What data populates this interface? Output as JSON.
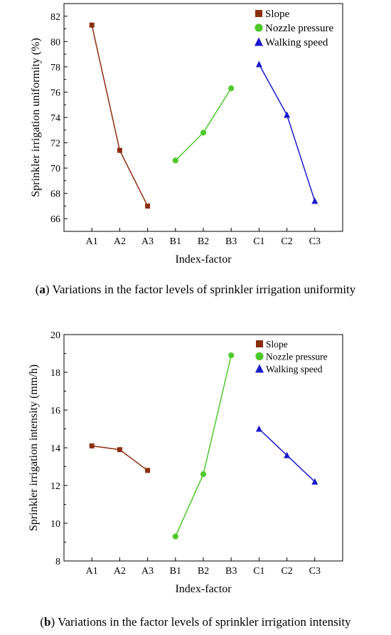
{
  "chart_data": [
    {
      "type": "line",
      "categories": [
        "A1",
        "A2",
        "A3",
        "B1",
        "B2",
        "B3",
        "C1",
        "C2",
        "C3"
      ],
      "xlabel": "Index-factor",
      "ylabel": "Sprinkler irrigation uniformity (%)",
      "ylim": [
        65,
        83
      ],
      "yticks": [
        66,
        68,
        70,
        72,
        74,
        76,
        78,
        80,
        82
      ],
      "grid": false,
      "legend_position": "top-right",
      "series": [
        {
          "name": "Slope",
          "color": "#8b2e0f",
          "marker": "square",
          "x": [
            "A1",
            "A2",
            "A3"
          ],
          "values": [
            81.3,
            71.4,
            67.0
          ]
        },
        {
          "name": "Nozzle pressure",
          "color": "#4ec92b",
          "marker": "circle",
          "x": [
            "B1",
            "B2",
            "B3"
          ],
          "values": [
            70.6,
            72.8,
            76.3
          ]
        },
        {
          "name": "Walking speed",
          "color": "#1a1acb",
          "marker": "triangle",
          "x": [
            "C1",
            "C2",
            "C3"
          ],
          "values": [
            78.2,
            74.2,
            67.4
          ]
        }
      ]
    },
    {
      "type": "line",
      "categories": [
        "A1",
        "A2",
        "A3",
        "B1",
        "B2",
        "B3",
        "C1",
        "C2",
        "C3"
      ],
      "xlabel": "Index-factor",
      "ylabel": "Sprinkler irrigation intensity (mm/h)",
      "ylim": [
        8,
        20
      ],
      "yticks": [
        8,
        10,
        12,
        14,
        16,
        18,
        20
      ],
      "grid": false,
      "legend_position": "top-right",
      "series": [
        {
          "name": "Slope",
          "color": "#8b2e0f",
          "marker": "square",
          "x": [
            "A1",
            "A2",
            "A3"
          ],
          "values": [
            14.1,
            13.9,
            12.8
          ]
        },
        {
          "name": "Nozzle pressure",
          "color": "#4ec92b",
          "marker": "circle",
          "x": [
            "B1",
            "B2",
            "B3"
          ],
          "values": [
            9.3,
            12.6,
            18.9
          ]
        },
        {
          "name": "Walking speed",
          "color": "#1a1acb",
          "marker": "triangle",
          "x": [
            "C1",
            "C2",
            "C3"
          ],
          "values": [
            15.0,
            13.6,
            12.2
          ]
        }
      ]
    }
  ],
  "captions": {
    "a_label": "a",
    "a_text": " Variations in the factor levels of sprinkler irrigation uniformity",
    "b_label": "b",
    "b_text": " Variations in the factor levels of sprinkler irrigation intensity"
  }
}
